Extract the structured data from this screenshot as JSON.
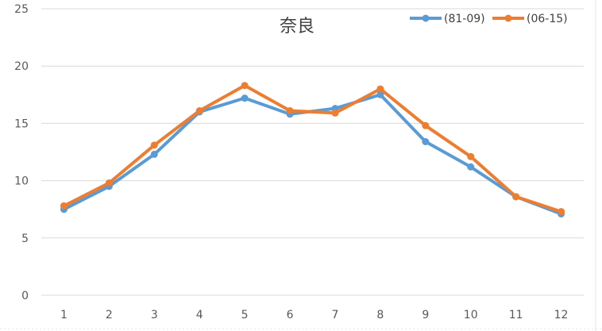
{
  "chart_data": {
    "type": "line",
    "title": "奈良",
    "xlabel": "",
    "ylabel": "",
    "categories": [
      "1",
      "2",
      "3",
      "4",
      "5",
      "6",
      "7",
      "8",
      "9",
      "10",
      "11",
      "12"
    ],
    "ylim": [
      0,
      25
    ],
    "yticks": [
      "0",
      "5",
      "10",
      "15",
      "20",
      "25"
    ],
    "grid": "horizontal",
    "legend": "top-right",
    "series": [
      {
        "name": "(81-09)",
        "color": "#5B9BD5",
        "values": [
          7.5,
          9.5,
          12.3,
          16.0,
          17.2,
          15.8,
          16.3,
          17.5,
          13.4,
          11.2,
          8.6,
          7.1
        ]
      },
      {
        "name": "(06-15)",
        "color": "#ED7D31",
        "values": [
          7.8,
          9.8,
          13.1,
          16.1,
          18.3,
          16.1,
          15.9,
          18.0,
          14.8,
          12.1,
          8.6,
          7.3
        ]
      }
    ]
  }
}
